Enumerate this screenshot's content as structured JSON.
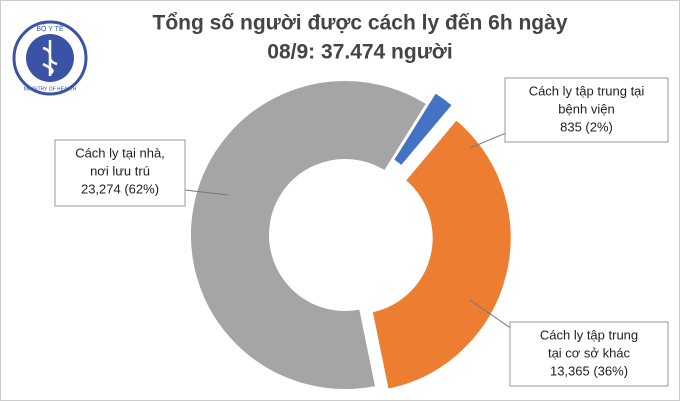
{
  "logo": {
    "top_text": "BỘ Y TẾ",
    "bottom_text": "MINISTRY OF HEALTH"
  },
  "chart_data": {
    "type": "donut",
    "title": [
      "Tổng số người được cách ly đến 6h ngày",
      "08/9: 37.474 người"
    ],
    "categories": [
      [
        "Cách ly tập trung tại",
        "bệnh viện"
      ],
      [
        "Cách ly tập trung",
        "tại cơ sở khác"
      ],
      [
        "Cách ly tại nhà,",
        "nơi lưu trú"
      ]
    ],
    "values": [
      835,
      13365,
      23274
    ],
    "value_labels": [
      "835 (2%)",
      "13,365 (36%)",
      "23,274 (62%)"
    ],
    "colors": [
      "#4472c4",
      "#ed7d31",
      "#a5a5a5"
    ]
  }
}
